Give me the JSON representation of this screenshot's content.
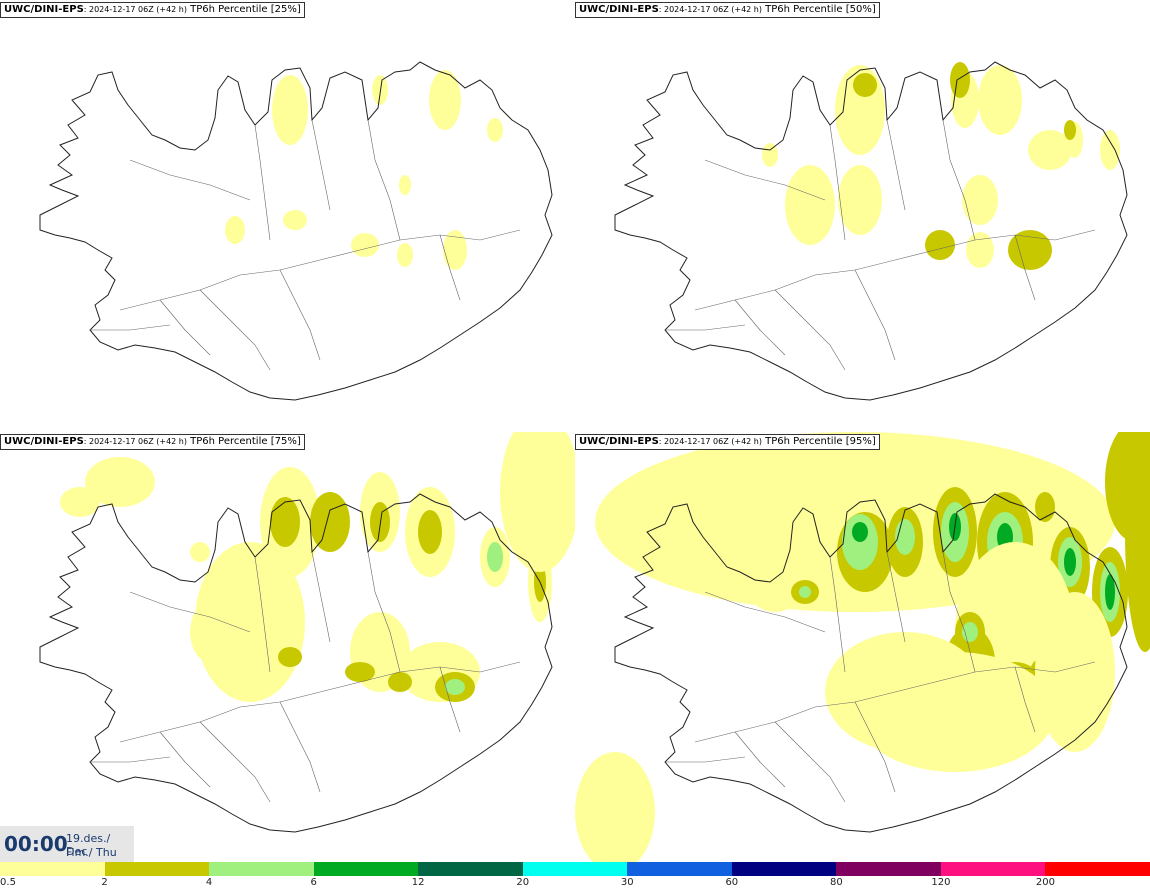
{
  "panels": [
    {
      "model": "UWC/DINI-EPS",
      "run": ": 2024-12-17 06Z (+42 h)",
      "label": " TP6h Percentile [25%]"
    },
    {
      "model": "UWC/DINI-EPS",
      "run": ": 2024-12-17 06Z (+42 h)",
      "label": " TP6h Percentile [50%]"
    },
    {
      "model": "UWC/DINI-EPS",
      "run": ": 2024-12-17 06Z (+42 h)",
      "label": " TP6h Percentile [75%]"
    },
    {
      "model": "UWC/DINI-EPS",
      "run": ": 2024-12-17 06Z (+42 h)",
      "label": " TP6h Percentile [95%]"
    }
  ],
  "valid_time": {
    "clock": "00:00",
    "date_line1": "19.des./ Dec",
    "date_line2": "Fim./ Thu"
  },
  "legend": {
    "ticks": [
      "0.5",
      "2",
      "4",
      "6",
      "12",
      "20",
      "30",
      "60",
      "80",
      "120",
      "200"
    ],
    "colors": [
      "#ffff99",
      "#c8c800",
      "#a0f080",
      "#00aa22",
      "#006644",
      "#00ffee",
      "#1060e0",
      "#000080",
      "#800060",
      "#ff1080",
      "#ff0000"
    ]
  }
}
